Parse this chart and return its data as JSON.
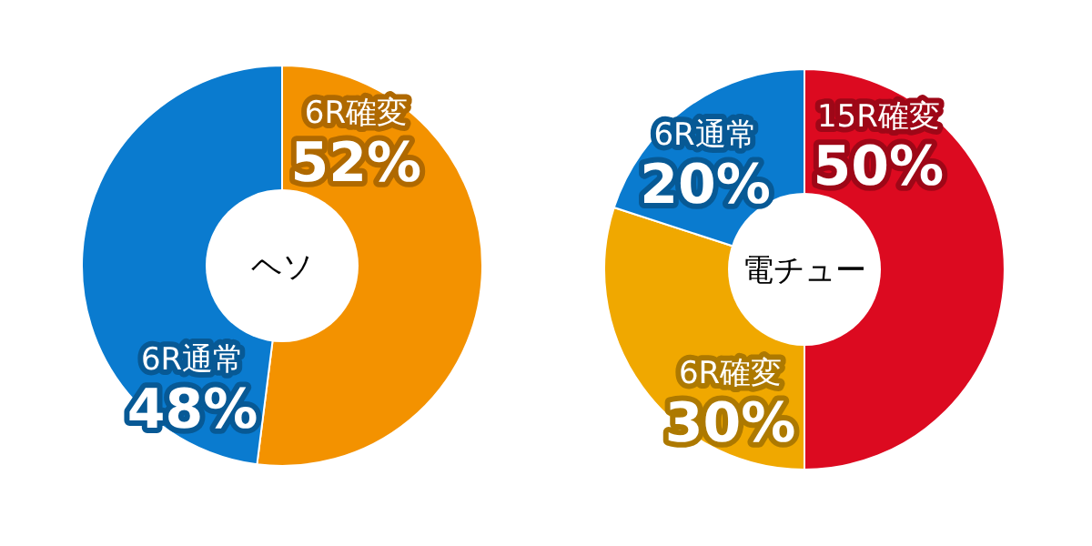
{
  "chart_data": [
    {
      "type": "donut",
      "title": "ヘソ",
      "categories": [
        "6R確変",
        "6R通常"
      ],
      "values": [
        52,
        48
      ],
      "colors": [
        "#f39200",
        "#0a7bcf"
      ],
      "value_labels": [
        "52%",
        "48%"
      ]
    },
    {
      "type": "donut",
      "title": "電チュー",
      "categories": [
        "15R確変",
        "6R確変",
        "6R通常"
      ],
      "values": [
        50,
        30,
        20
      ],
      "colors": [
        "#dc0a20",
        "#f0a800",
        "#0a7bcf"
      ],
      "value_labels": [
        "50%",
        "30%",
        "20%"
      ]
    }
  ]
}
